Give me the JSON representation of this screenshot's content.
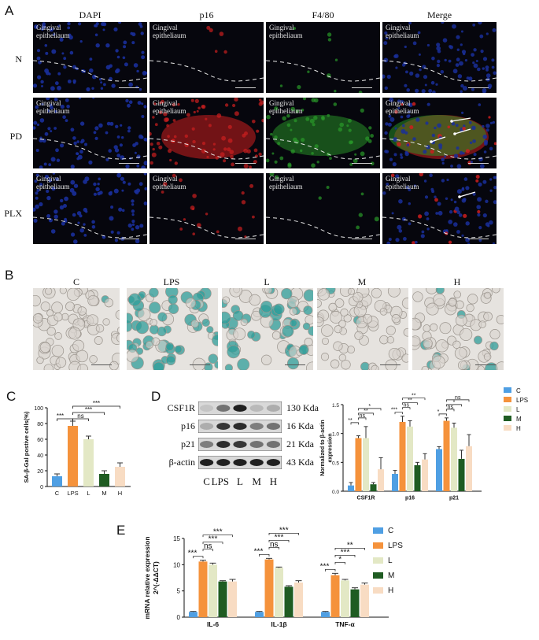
{
  "panelA": {
    "label": "A",
    "columns": [
      "DAPI",
      "p16",
      "F4/80",
      "Merge"
    ],
    "rows": [
      "N",
      "PD",
      "PLX"
    ],
    "tile_text": [
      "Gingival",
      "epitheliaum"
    ]
  },
  "panelB": {
    "label": "B",
    "groups": [
      "C",
      "LPS",
      "L",
      "M",
      "H"
    ]
  },
  "colors": {
    "C": "#4f9fe3",
    "LPS": "#f5923b",
    "L": "#e3e8c5",
    "M": "#1f5c22",
    "H": "#f8dcc3",
    "dapi": "#1a2f9a",
    "p16": "#cc1f1f",
    "f480": "#2a9a2a",
    "stain": "#2f9e9a"
  },
  "panelC": {
    "label": "C",
    "chart_data": {
      "type": "bar",
      "categories": [
        "C",
        "LPS",
        "L",
        "M",
        "H"
      ],
      "values": [
        13,
        77,
        60,
        16,
        25
      ],
      "errors": [
        3,
        6,
        4,
        4,
        5
      ],
      "ylabel": "SA-β-Gal postive cells(%)",
      "ylim": [
        0,
        100
      ],
      "yticks": [
        0,
        20,
        40,
        60,
        80,
        100
      ],
      "significance": [
        {
          "from": 0,
          "to": 1,
          "label": "***"
        },
        {
          "from": 1,
          "to": 2,
          "label": "ns"
        },
        {
          "from": 1,
          "to": 3,
          "label": "***"
        },
        {
          "from": 1,
          "to": 4,
          "label": "***"
        }
      ]
    }
  },
  "panelD": {
    "label": "D",
    "blot": {
      "proteins": [
        "CSF1R",
        "p16",
        "p21",
        "β-actin"
      ],
      "sizes": [
        "130 Kda",
        "16 Kda",
        "21 Kda",
        "43 Kda"
      ],
      "lanes": [
        "C",
        "LPS",
        "L",
        "M",
        "H"
      ]
    },
    "chart_data": {
      "type": "bar",
      "categories": [
        "CSF1R",
        "p16",
        "p21"
      ],
      "series": [
        {
          "name": "C",
          "values": [
            0.1,
            0.3,
            0.73
          ],
          "errors": [
            0.05,
            0.06,
            0.04
          ]
        },
        {
          "name": "LPS",
          "values": [
            0.92,
            1.2,
            1.22
          ],
          "errors": [
            0.04,
            0.1,
            0.05
          ]
        },
        {
          "name": "L",
          "values": [
            0.92,
            1.12,
            1.1
          ],
          "errors": [
            0.2,
            0.1,
            0.08
          ]
        },
        {
          "name": "M",
          "values": [
            0.12,
            0.45,
            0.56
          ],
          "errors": [
            0.03,
            0.05,
            0.15
          ]
        },
        {
          "name": "H",
          "values": [
            0.38,
            0.55,
            0.78
          ],
          "errors": [
            0.2,
            0.1,
            0.2
          ]
        }
      ],
      "ylabel": "Normalized to β-actin expression",
      "ylim": [
        0,
        1.5
      ],
      "yticks": [
        "0.0",
        "0.5",
        "1.0",
        "1.5"
      ],
      "significance": [
        [
          {
            "from": 0,
            "to": 1,
            "label": "**"
          },
          {
            "from": 1,
            "to": 2,
            "label": "ns"
          },
          {
            "from": 1,
            "to": 3,
            "label": "**"
          },
          {
            "from": 1,
            "to": 4,
            "label": "*"
          }
        ],
        [
          {
            "from": 0,
            "to": 1,
            "label": "***"
          },
          {
            "from": 1,
            "to": 2,
            "label": "ns"
          },
          {
            "from": 1,
            "to": 3,
            "label": "**"
          },
          {
            "from": 1,
            "to": 4,
            "label": "**"
          }
        ],
        [
          {
            "from": 0,
            "to": 1,
            "label": "*"
          },
          {
            "from": 1,
            "to": 2,
            "label": "ns"
          },
          {
            "from": 1,
            "to": 3,
            "label": "*"
          },
          {
            "from": 1,
            "to": 4,
            "label": "ns"
          }
        ]
      ],
      "legend": [
        "C",
        "LPS",
        "L",
        "M",
        "H"
      ]
    }
  },
  "panelE": {
    "label": "E",
    "chart_data": {
      "type": "bar",
      "categories": [
        "IL-6",
        "IL-1β",
        "TNF-α"
      ],
      "series": [
        {
          "name": "C",
          "values": [
            1.0,
            1.0,
            1.0
          ],
          "errors": [
            0.1,
            0.1,
            0.1
          ]
        },
        {
          "name": "LPS",
          "values": [
            10.6,
            11.0,
            8.0
          ],
          "errors": [
            0.25,
            0.2,
            0.35
          ]
        },
        {
          "name": "L",
          "values": [
            10.0,
            9.4,
            7.0
          ],
          "errors": [
            0.3,
            0.15,
            0.2
          ]
        },
        {
          "name": "M",
          "values": [
            6.8,
            5.8,
            5.3
          ],
          "errors": [
            0.15,
            0.2,
            0.3
          ]
        },
        {
          "name": "H",
          "values": [
            6.8,
            6.6,
            6.2
          ],
          "errors": [
            0.4,
            0.35,
            0.3
          ]
        }
      ],
      "ylabel": "mRNA relative expression 2^(-ΔΔCT)",
      "ylim": [
        0,
        15
      ],
      "yticks": [
        "0",
        "5",
        "10",
        "15"
      ],
      "significance": [
        [
          {
            "from": 0,
            "to": 1,
            "label": "***"
          },
          {
            "from": 1,
            "to": 2,
            "label": "ns"
          },
          {
            "from": 1,
            "to": 3,
            "label": "***"
          },
          {
            "from": 1,
            "to": 4,
            "label": "***"
          }
        ],
        [
          {
            "from": 0,
            "to": 1,
            "label": "***"
          },
          {
            "from": 1,
            "to": 2,
            "label": "ns"
          },
          {
            "from": 1,
            "to": 3,
            "label": "***"
          },
          {
            "from": 1,
            "to": 4,
            "label": "***"
          }
        ],
        [
          {
            "from": 0,
            "to": 1,
            "label": "***"
          },
          {
            "from": 1,
            "to": 2,
            "label": "*"
          },
          {
            "from": 1,
            "to": 3,
            "label": "***"
          },
          {
            "from": 1,
            "to": 4,
            "label": "**"
          }
        ]
      ],
      "legend": [
        "C",
        "LPS",
        "L",
        "M",
        "H"
      ]
    }
  }
}
